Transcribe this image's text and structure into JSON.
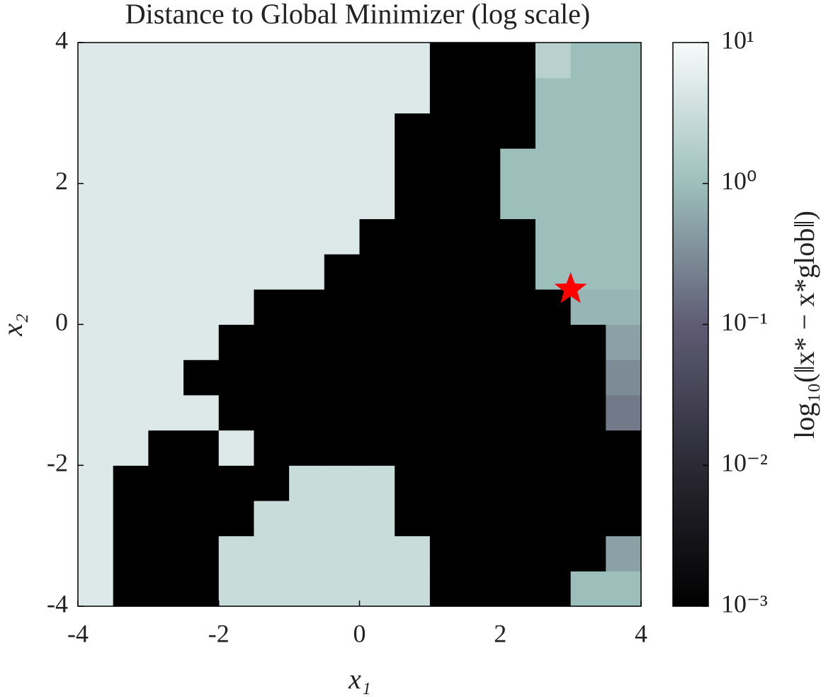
{
  "chart_data": {
    "type": "heatmap",
    "title": "Distance to Global Minimizer (log scale)",
    "x_label": "x₁",
    "y_label": "x₂",
    "colorbar_label": "log₁₀(‖x* − x*glob‖)",
    "xbins": [
      -4,
      -3.5,
      -3,
      -2.5,
      -2,
      -1.5,
      -1,
      -0.5,
      0,
      0.5,
      1,
      1.5,
      2,
      2.5,
      3,
      3.5,
      4
    ],
    "ybins": [
      -4,
      -3.5,
      -3,
      -2.5,
      -2,
      -1.5,
      -1,
      -0.5,
      0,
      0.5,
      1,
      1.5,
      2,
      2.5,
      3,
      3.5,
      4
    ],
    "xlim": [
      -4,
      4
    ],
    "ylim": [
      -4,
      4
    ],
    "xticks": [
      -4,
      -2,
      0,
      2,
      4
    ],
    "yticks": [
      -4,
      -2,
      0,
      2,
      4
    ],
    "zlim": [
      0.001,
      10
    ],
    "zscale": "log",
    "zticks": [
      {
        "value": 0.001,
        "label": "10⁻³"
      },
      {
        "value": 0.01,
        "label": "10⁻²"
      },
      {
        "value": 0.1,
        "label": "10⁻¹"
      },
      {
        "value": 1,
        "label": "10⁰"
      },
      {
        "value": 10,
        "label": "10¹"
      }
    ],
    "colormap": [
      "#000000",
      "#2b2a35",
      "#5f5c74",
      "#9dbfbc",
      "#f8fbfb"
    ],
    "z": [
      [
        5,
        0.001,
        0.001,
        0.001,
        3,
        3,
        3,
        3,
        3,
        3,
        0.001,
        0.001,
        0.001,
        0.001,
        1,
        1
      ],
      [
        5,
        0.001,
        0.001,
        0.001,
        3,
        3,
        3,
        3,
        3,
        3,
        0.001,
        0.001,
        0.001,
        0.001,
        0.001,
        0.5
      ],
      [
        5,
        0.001,
        0.001,
        0.001,
        0.001,
        3,
        3,
        3,
        3,
        0.001,
        0.001,
        0.001,
        0.001,
        0.001,
        0.001,
        0.001
      ],
      [
        5,
        0.001,
        0.001,
        0.001,
        0.001,
        0.001,
        3,
        3,
        3,
        0.001,
        0.001,
        0.001,
        0.001,
        0.001,
        0.001,
        0.001
      ],
      [
        5,
        5,
        0.001,
        0.001,
        5,
        0.001,
        0.001,
        0.001,
        0.001,
        0.001,
        0.001,
        0.001,
        0.001,
        0.001,
        0.001,
        0.001
      ],
      [
        5,
        5,
        5,
        5,
        0.001,
        0.001,
        0.001,
        0.001,
        0.001,
        0.001,
        0.001,
        0.001,
        0.001,
        0.001,
        0.001,
        0.2
      ],
      [
        5,
        5,
        5,
        0.001,
        0.001,
        0.001,
        0.001,
        0.001,
        0.001,
        0.001,
        0.001,
        0.001,
        0.001,
        0.001,
        0.001,
        0.3
      ],
      [
        5,
        5,
        5,
        5,
        0.001,
        0.001,
        0.001,
        0.001,
        0.001,
        0.001,
        0.001,
        0.001,
        0.001,
        0.001,
        0.001,
        0.5
      ],
      [
        5,
        5,
        5,
        5,
        5,
        0.001,
        0.001,
        0.001,
        0.001,
        0.001,
        0.001,
        0.001,
        0.001,
        0.001,
        0.8,
        0.8
      ],
      [
        5,
        5,
        5,
        5,
        5,
        5,
        5,
        0.001,
        0.001,
        0.001,
        0.001,
        0.001,
        0.001,
        1,
        1,
        1
      ],
      [
        5,
        5,
        5,
        5,
        5,
        5,
        5,
        5,
        0.001,
        0.001,
        0.001,
        0.001,
        0.001,
        1,
        1,
        1
      ],
      [
        5,
        5,
        5,
        5,
        5,
        5,
        5,
        5,
        5,
        0.001,
        0.001,
        0.001,
        1,
        1,
        1,
        1
      ],
      [
        5,
        5,
        5,
        5,
        5,
        5,
        5,
        5,
        5,
        0.001,
        0.001,
        0.001,
        1,
        1,
        1,
        1
      ],
      [
        5,
        5,
        5,
        5,
        5,
        5,
        5,
        5,
        5,
        0.001,
        0.001,
        0.001,
        0.001,
        1,
        1,
        1
      ],
      [
        5,
        5,
        5,
        5,
        5,
        5,
        5,
        5,
        5,
        5,
        0.001,
        0.001,
        0.001,
        1,
        1,
        1
      ],
      [
        5,
        5,
        5,
        5,
        5,
        5,
        5,
        5,
        5,
        5,
        0.001,
        0.001,
        0.001,
        2,
        1,
        1
      ]
    ],
    "points": {
      "x": [
        3
      ],
      "y": [
        0.5
      ],
      "color": "#ff0000",
      "marker": "star"
    }
  }
}
